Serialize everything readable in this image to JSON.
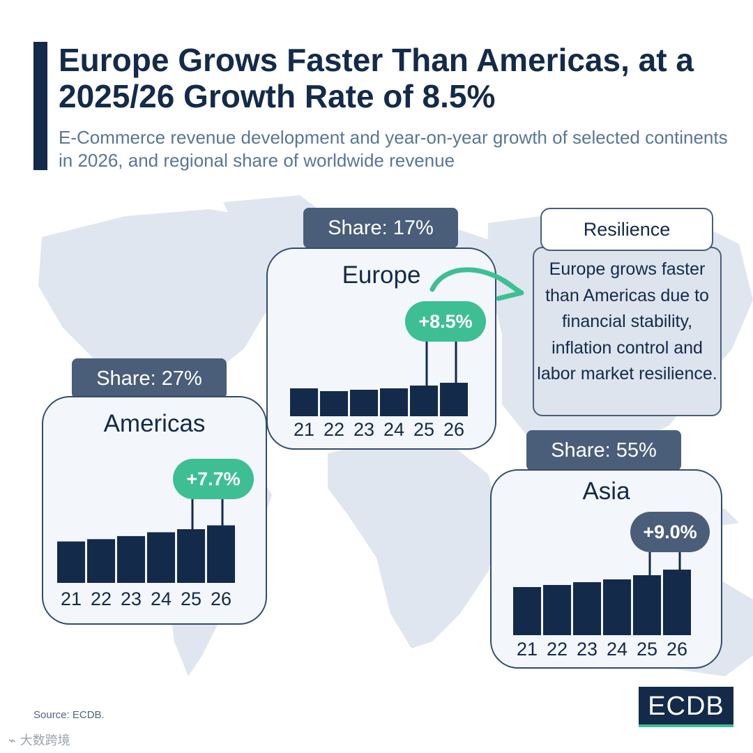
{
  "header": {
    "title": "Europe Grows Faster Than Americas, at a 2025/26 Growth Rate of 8.5%",
    "subtitle": "E-Commerce revenue development and year-on-year growth of selected continents in 2026, and regional share of worldwide revenue"
  },
  "callout": {
    "heading": "Resilience",
    "text": "Europe grows faster than Americas due to financial stability, inflation control and labor market resilience."
  },
  "footer": {
    "source": "Source: ECDB.",
    "logo": "ECDB",
    "watermark": "大数跨境"
  },
  "colors": {
    "navy": "#132a4a",
    "tab": "#4a5e7a",
    "green": "#3dbf93",
    "card_bg": "#f3f6fa",
    "map": "#dfe6ef"
  },
  "chart_data": [
    {
      "type": "bar",
      "title": "Americas",
      "share_label": "Share: 27%",
      "categories": [
        "21",
        "22",
        "23",
        "24",
        "25",
        "26"
      ],
      "values": [
        54,
        57,
        61,
        66,
        70,
        75
      ],
      "ylim": [
        0,
        100
      ],
      "growth_label": "+7.7%",
      "growth_color": "green"
    },
    {
      "type": "bar",
      "title": "Europe",
      "share_label": "Share: 17%",
      "categories": [
        "21",
        "22",
        "23",
        "24",
        "25",
        "26"
      ],
      "values": [
        40,
        36,
        38,
        40,
        44,
        48
      ],
      "ylim": [
        0,
        100
      ],
      "growth_label": "+8.5%",
      "growth_color": "green"
    },
    {
      "type": "bar",
      "title": "Asia",
      "share_label": "Share: 55%",
      "categories": [
        "21",
        "22",
        "23",
        "24",
        "25",
        "26"
      ],
      "values": [
        69,
        72,
        76,
        80,
        86,
        94
      ],
      "ylim": [
        0,
        100
      ],
      "growth_label": "+9.0%",
      "growth_color": "navy"
    }
  ]
}
